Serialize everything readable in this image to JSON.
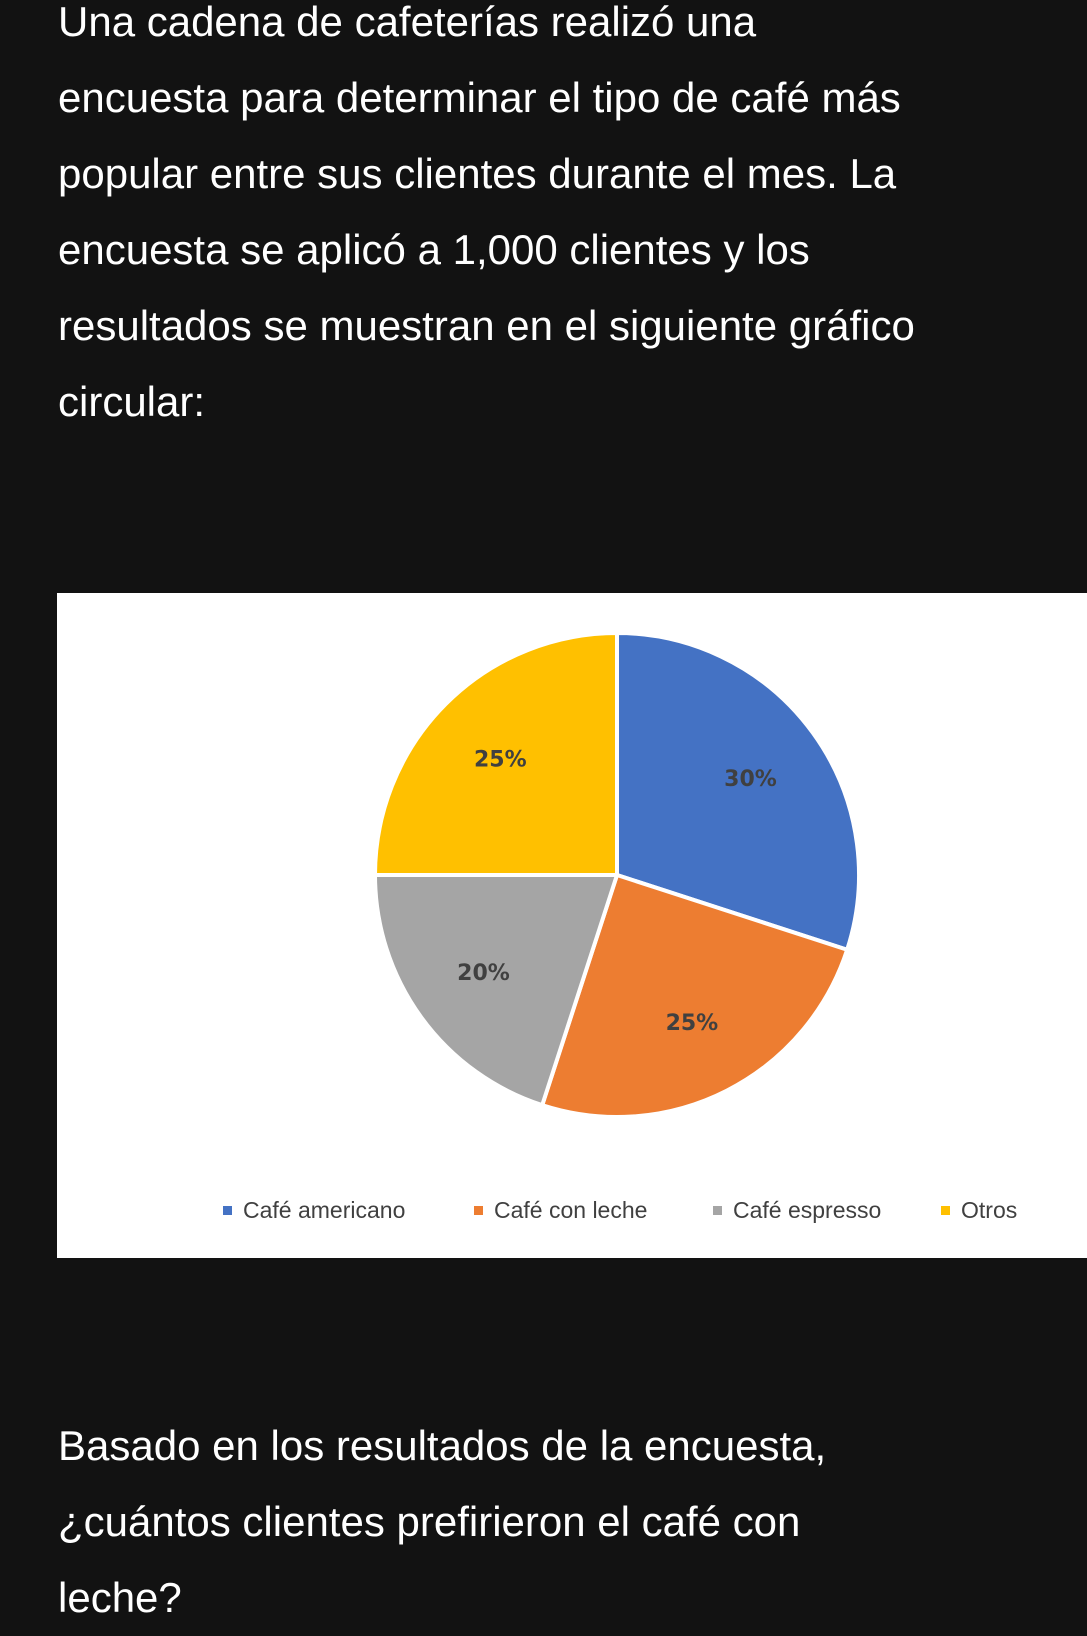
{
  "problem": {
    "intro": "Una cadena de cafeterías realizó una\nencuesta para determinar el tipo de café más\npopular entre sus clientes durante el mes. La\nencuesta se aplicó a 1,000 clientes y los\nresultados se muestran en el siguiente gráfico\ncircular:",
    "question": "Basado en los resultados de la encuesta,\n¿cuántos clientes prefirieron el café con\nleche?"
  },
  "chart_data": {
    "type": "pie",
    "categories": [
      "Café americano",
      "Café con leche",
      "Café espresso",
      "Otros"
    ],
    "values": [
      30,
      25,
      20,
      25
    ],
    "labels": [
      "30%",
      "25%",
      "20%",
      "25%"
    ],
    "colors": [
      "#4472c4",
      "#ed7d31",
      "#a5a5a5",
      "#ffc000"
    ],
    "legend_position": "bottom",
    "start": "12 o'clock, clockwise"
  }
}
